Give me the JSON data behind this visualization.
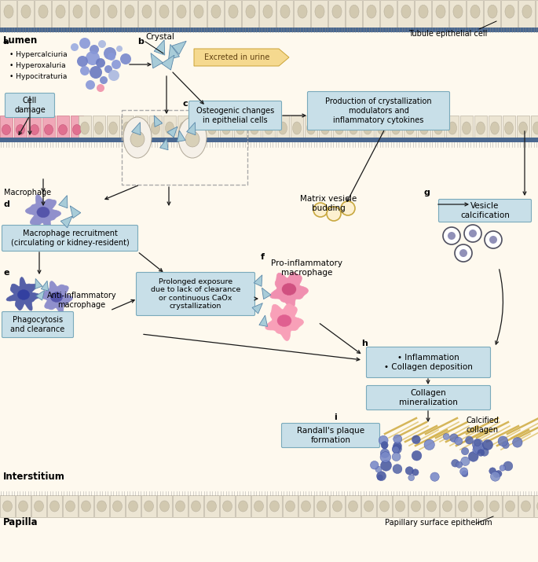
{
  "bg_color": "#fef9ee",
  "top_cell_color": "#eae3d2",
  "top_nucleus_color": "#cfc8b0",
  "cell_border": "#b0a898",
  "blue_band": "#4a6890",
  "pink_cell_color": "#f0a8bc",
  "pink_nucleus_color": "#e07898",
  "box_fill": "#c8dfe8",
  "box_edge": "#7aaabb",
  "arrow_col": "#1a1a1a",
  "crystal_fill": "#90bdd0",
  "crystal_edge": "#5a88aa",
  "macro_blue_fill": "#9090cc",
  "macro_blue_dark": "#5555aa",
  "macro_dark_fill": "#5555a8",
  "macro_dark_nuc": "#333388",
  "macro_pink_fill": "#f090b0",
  "macro_pink_nuc": "#d05080",
  "vesicle_edge": "#c8a840",
  "collagen_col": "#c8a030",
  "randall_dot": "#6878b8",
  "fig_w": 6.85,
  "fig_h": 7.15,
  "dpi": 100
}
